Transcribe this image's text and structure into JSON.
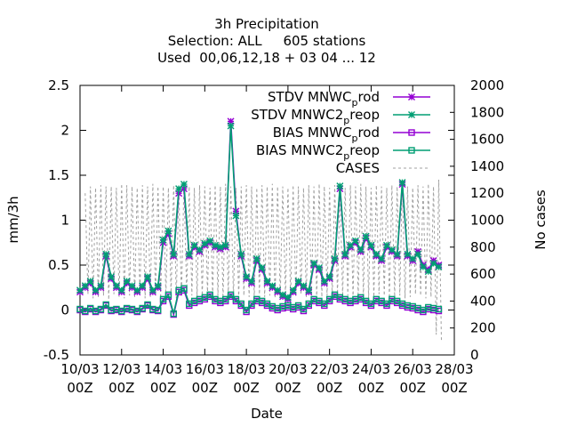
{
  "chart_data": {
    "type": "line",
    "title": [
      "3h Precipitation",
      "Selection: ALL     605 stations",
      "Used  00,06,12,18 + 03 04 ... 12"
    ],
    "xlabel": "Date",
    "ylabel": "mm/3h",
    "y2label": "No cases",
    "xlim": [
      0,
      18
    ],
    "ylim": [
      -0.5,
      2.5
    ],
    "y2lim": [
      0,
      2000
    ],
    "x_ticks": [
      {
        "value": 0,
        "date": "10/03",
        "hour": "00Z"
      },
      {
        "value": 2,
        "date": "12/03",
        "hour": "00Z"
      },
      {
        "value": 4,
        "date": "14/03",
        "hour": "00Z"
      },
      {
        "value": 6,
        "date": "16/03",
        "hour": "00Z"
      },
      {
        "value": 8,
        "date": "18/03",
        "hour": "00Z"
      },
      {
        "value": 10,
        "date": "20/03",
        "hour": "00Z"
      },
      {
        "value": 12,
        "date": "22/03",
        "hour": "00Z"
      },
      {
        "value": 14,
        "date": "24/03",
        "hour": "00Z"
      },
      {
        "value": 16,
        "date": "26/03",
        "hour": "00Z"
      },
      {
        "value": 18,
        "date": "28/03",
        "hour": "00Z"
      }
    ],
    "y_ticks": [
      "-0.5",
      "0",
      "0.5",
      "1",
      "1.5",
      "2",
      "2.5"
    ],
    "y2_ticks": [
      "0",
      "200",
      "400",
      "600",
      "800",
      "1000",
      "1200",
      "1400",
      "1600",
      "1800",
      "2000"
    ],
    "legend_position": "top-right",
    "series": [
      {
        "name": "STDV MNWC",
        "sub": "p",
        "tail": "rod",
        "color": "#9400d3",
        "marker": "x-star",
        "axis": "y",
        "x": [
          0,
          0.25,
          0.5,
          0.75,
          1,
          1.25,
          1.5,
          1.75,
          2,
          2.25,
          2.5,
          2.75,
          3,
          3.25,
          3.5,
          3.75,
          4,
          4.25,
          4.5,
          4.75,
          5,
          5.25,
          5.5,
          5.75,
          6,
          6.25,
          6.5,
          6.75,
          7,
          7.25,
          7.5,
          7.75,
          8,
          8.25,
          8.5,
          8.75,
          9,
          9.25,
          9.5,
          9.75,
          10,
          10.25,
          10.5,
          10.75,
          11,
          11.25,
          11.5,
          11.75,
          12,
          12.25,
          12.5,
          12.75,
          13,
          13.25,
          13.5,
          13.75,
          14,
          14.25,
          14.5,
          14.75,
          15,
          15.25,
          15.5,
          15.75,
          16,
          16.25,
          16.5,
          16.75,
          17,
          17.25
        ],
        "y": [
          0.2,
          0.25,
          0.3,
          0.2,
          0.25,
          0.6,
          0.35,
          0.25,
          0.2,
          0.3,
          0.25,
          0.2,
          0.25,
          0.35,
          0.2,
          0.25,
          0.75,
          0.85,
          0.6,
          1.3,
          1.35,
          0.6,
          0.7,
          0.65,
          0.72,
          0.75,
          0.7,
          0.68,
          0.7,
          2.1,
          1.1,
          0.6,
          0.35,
          0.3,
          0.55,
          0.45,
          0.3,
          0.25,
          0.2,
          0.15,
          0.12,
          0.2,
          0.3,
          0.25,
          0.2,
          0.5,
          0.45,
          0.3,
          0.35,
          0.55,
          1.35,
          0.6,
          0.7,
          0.75,
          0.65,
          0.8,
          0.7,
          0.6,
          0.55,
          0.7,
          0.65,
          0.6,
          1.4,
          0.6,
          0.55,
          0.65,
          0.5,
          0.45,
          0.55,
          0.5
        ]
      },
      {
        "name": "STDV MNWC2",
        "sub": "p",
        "tail": "reop",
        "color": "#009e73",
        "marker": "x-star",
        "axis": "y",
        "x": [
          0,
          0.25,
          0.5,
          0.75,
          1,
          1.25,
          1.5,
          1.75,
          2,
          2.25,
          2.5,
          2.75,
          3,
          3.25,
          3.5,
          3.75,
          4,
          4.25,
          4.5,
          4.75,
          5,
          5.25,
          5.5,
          5.75,
          6,
          6.25,
          6.5,
          6.75,
          7,
          7.25,
          7.5,
          7.75,
          8,
          8.25,
          8.5,
          8.75,
          9,
          9.25,
          9.5,
          9.75,
          10,
          10.25,
          10.5,
          10.75,
          11,
          11.25,
          11.5,
          11.75,
          12,
          12.25,
          12.5,
          12.75,
          13,
          13.25,
          13.5,
          13.75,
          14,
          14.25,
          14.5,
          14.75,
          15,
          15.25,
          15.5,
          15.75,
          16,
          16.25,
          16.5,
          16.75,
          17,
          17.25
        ],
        "y": [
          0.22,
          0.27,
          0.32,
          0.22,
          0.27,
          0.62,
          0.37,
          0.27,
          0.22,
          0.32,
          0.27,
          0.22,
          0.27,
          0.37,
          0.22,
          0.27,
          0.78,
          0.88,
          0.62,
          1.35,
          1.4,
          0.62,
          0.72,
          0.67,
          0.74,
          0.77,
          0.72,
          0.7,
          0.72,
          2.05,
          1.05,
          0.62,
          0.37,
          0.32,
          0.57,
          0.47,
          0.32,
          0.27,
          0.22,
          0.17,
          0.14,
          0.22,
          0.32,
          0.27,
          0.22,
          0.52,
          0.47,
          0.32,
          0.37,
          0.57,
          1.38,
          0.62,
          0.72,
          0.77,
          0.67,
          0.82,
          0.72,
          0.62,
          0.57,
          0.72,
          0.67,
          0.62,
          1.42,
          0.62,
          0.57,
          0.62,
          0.48,
          0.43,
          0.52,
          0.48
        ]
      },
      {
        "name": "BIAS MNWC",
        "sub": "p",
        "tail": "rod",
        "color": "#9400d3",
        "marker": "square",
        "axis": "y",
        "x": [
          0,
          0.25,
          0.5,
          0.75,
          1,
          1.25,
          1.5,
          1.75,
          2,
          2.25,
          2.5,
          2.75,
          3,
          3.25,
          3.5,
          3.75,
          4,
          4.25,
          4.5,
          4.75,
          5,
          5.25,
          5.5,
          5.75,
          6,
          6.25,
          6.5,
          6.75,
          7,
          7.25,
          7.5,
          7.75,
          8,
          8.25,
          8.5,
          8.75,
          9,
          9.25,
          9.5,
          9.75,
          10,
          10.25,
          10.5,
          10.75,
          11,
          11.25,
          11.5,
          11.75,
          12,
          12.25,
          12.5,
          12.75,
          13,
          13.25,
          13.5,
          13.75,
          14,
          14.25,
          14.5,
          14.75,
          15,
          15.25,
          15.5,
          15.75,
          16,
          16.25,
          16.5,
          16.75,
          17,
          17.25
        ],
        "y": [
          0,
          -0.02,
          0.01,
          -0.02,
          0,
          0.05,
          -0.01,
          0,
          -0.02,
          0.01,
          0,
          -0.02,
          0.01,
          0.05,
          0,
          -0.01,
          0.1,
          0.15,
          -0.05,
          0.2,
          0.22,
          0.05,
          0.08,
          0.1,
          0.12,
          0.15,
          0.1,
          0.08,
          0.1,
          0.15,
          0.1,
          0.05,
          -0.02,
          0.05,
          0.1,
          0.08,
          0.05,
          0.02,
          0,
          0.02,
          0.03,
          0.01,
          0.03,
          -0.01,
          0.05,
          0.1,
          0.08,
          0.05,
          0.1,
          0.15,
          0.12,
          0.1,
          0.08,
          0.1,
          0.12,
          0.08,
          0.05,
          0.1,
          0.08,
          0.05,
          0.1,
          0.08,
          0.05,
          0.03,
          0.02,
          0,
          -0.02,
          0.01,
          0,
          -0.01
        ]
      },
      {
        "name": "BIAS MNWC2",
        "sub": "p",
        "tail": "reop",
        "color": "#009e73",
        "marker": "square",
        "axis": "y",
        "x": [
          0,
          0.25,
          0.5,
          0.75,
          1,
          1.25,
          1.5,
          1.75,
          2,
          2.25,
          2.5,
          2.75,
          3,
          3.25,
          3.5,
          3.75,
          4,
          4.25,
          4.5,
          4.75,
          5,
          5.25,
          5.5,
          5.75,
          6,
          6.25,
          6.5,
          6.75,
          7,
          7.25,
          7.5,
          7.75,
          8,
          8.25,
          8.5,
          8.75,
          9,
          9.25,
          9.5,
          9.75,
          10,
          10.25,
          10.5,
          10.75,
          11,
          11.25,
          11.5,
          11.75,
          12,
          12.25,
          12.5,
          12.75,
          13,
          13.25,
          13.5,
          13.75,
          14,
          14.25,
          14.5,
          14.75,
          15,
          15.25,
          15.5,
          15.75,
          16,
          16.25,
          16.5,
          16.75,
          17,
          17.25
        ],
        "y": [
          0.01,
          -0.01,
          0.02,
          -0.01,
          0.01,
          0.06,
          0,
          0.01,
          -0.01,
          0.02,
          0.01,
          -0.01,
          0.02,
          0.06,
          0.01,
          0,
          0.12,
          0.17,
          -0.04,
          0.22,
          0.24,
          0.07,
          0.1,
          0.12,
          0.14,
          0.17,
          0.12,
          0.1,
          0.12,
          0.17,
          0.12,
          0.07,
          0,
          0.07,
          0.12,
          0.1,
          0.07,
          0.04,
          0.02,
          0.04,
          0.05,
          0.03,
          0.05,
          0.01,
          0.07,
          0.12,
          0.1,
          0.07,
          0.12,
          0.17,
          0.14,
          0.12,
          0.1,
          0.12,
          0.14,
          0.1,
          0.07,
          0.12,
          0.1,
          0.07,
          0.12,
          0.1,
          0.07,
          0.05,
          0.04,
          0.02,
          0,
          0.03,
          0.02,
          0.01
        ]
      },
      {
        "name": "CASES",
        "sub": "",
        "tail": "",
        "color": "#a0a0a0",
        "marker": "none",
        "dash": "3,3",
        "axis": "y2",
        "x": [
          0.25,
          0.38,
          0.5,
          0.63,
          0.75,
          0.88,
          1,
          1.13,
          1.25,
          1.38,
          1.5,
          1.63,
          1.75,
          1.88,
          2,
          2.13,
          2.25,
          2.38,
          2.5,
          2.63,
          2.75,
          2.88,
          3,
          3.13,
          3.25,
          3.38,
          3.5,
          3.63,
          3.75,
          3.88,
          4,
          4.13,
          4.25,
          4.38,
          4.5,
          4.63,
          4.75,
          4.88,
          5,
          5.13,
          5.25,
          5.38,
          5.5,
          5.63,
          5.75,
          5.88,
          6,
          6.13,
          6.25,
          6.38,
          6.5,
          6.63,
          6.75,
          6.88,
          7,
          7.13,
          7.25,
          7.38,
          7.5,
          7.63,
          7.75,
          7.88,
          8,
          8.13,
          8.25,
          8.38,
          8.5,
          8.63,
          8.75,
          8.88,
          9,
          9.13,
          9.25,
          9.38,
          9.5,
          9.63,
          9.75,
          9.88,
          10,
          10.13,
          10.25,
          10.38,
          10.5,
          10.63,
          10.75,
          10.88,
          11,
          11.13,
          11.25,
          11.38,
          11.5,
          11.63,
          11.75,
          11.88,
          12,
          12.13,
          12.25,
          12.38,
          12.5,
          12.63,
          12.75,
          12.88,
          13,
          13.13,
          13.25,
          13.38,
          13.5,
          13.63,
          13.75,
          13.88,
          14,
          14.13,
          14.25,
          14.38,
          14.5,
          14.63,
          14.75,
          14.88,
          15,
          15.13,
          15.25,
          15.38,
          15.5,
          15.63,
          15.75,
          15.88,
          16,
          16.13,
          16.25,
          16.38,
          16.5,
          16.63,
          16.75,
          16.88,
          17,
          17.13,
          17.25,
          17.38
        ],
        "y": [
          1200,
          450,
          1250,
          420,
          1240,
          430,
          1260,
          440,
          1250,
          410,
          1250,
          450,
          1240,
          430,
          1270,
          420,
          1260,
          440,
          1250,
          430,
          1240,
          450,
          1260,
          420,
          1250,
          430,
          1270,
          440,
          1250,
          420,
          1250,
          430,
          1240,
          440,
          1260,
          420,
          1250,
          430,
          1270,
          450,
          1250,
          440,
          1240,
          430,
          1260,
          420,
          1250,
          450,
          1240,
          430,
          1260,
          440,
          1250,
          420,
          1270,
          450,
          1250,
          430,
          1240,
          420,
          1250,
          440,
          1260,
          430,
          1250,
          420,
          1240,
          450,
          1260,
          430,
          1250,
          440,
          1270,
          420,
          1250,
          430,
          1250,
          440,
          1240,
          420,
          1260,
          430,
          1250,
          450,
          1240,
          430,
          1260,
          440,
          1250,
          420,
          1270,
          430,
          1250,
          440,
          1240,
          420,
          1260,
          450,
          1250,
          430,
          1240,
          440,
          1260,
          420,
          1250,
          430,
          1270,
          440,
          1250,
          420,
          1240,
          430,
          1260,
          450,
          1250,
          440,
          1240,
          420,
          1260,
          430,
          1250,
          440,
          1270,
          420,
          1250,
          430,
          1240,
          450,
          1260,
          440,
          1250,
          420,
          1270,
          430,
          1250,
          150,
          1300,
          100
        ]
      }
    ]
  }
}
